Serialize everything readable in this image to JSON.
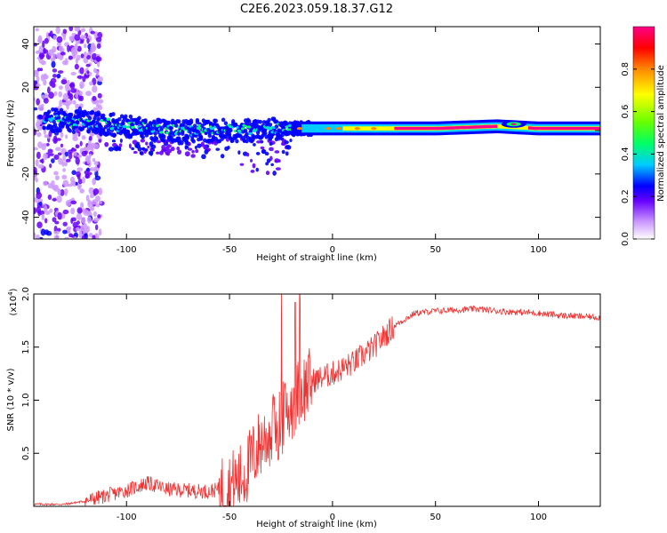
{
  "page": {
    "title": "C2E6.2023.059.18.37.G12"
  },
  "chart_data": [
    {
      "type": "heatmap",
      "title": "C2E6.2023.059.18.37.G12",
      "xlabel": "Height of straight line (km)",
      "ylabel": "Frequency (Hz)",
      "xlim": [
        -145,
        130
      ],
      "ylim": [
        -50,
        48
      ],
      "xticks": [
        -100,
        -50,
        0,
        50,
        100
      ],
      "xtick_labels": [
        "-100",
        "-50",
        "0",
        "50",
        "100"
      ],
      "yticks": [
        -40,
        -20,
        0,
        20,
        40
      ],
      "ytick_labels": [
        "-40",
        "-20",
        "0",
        "20",
        "40"
      ],
      "grid": false,
      "colorbar": {
        "label": "Normalized spectral amplitude",
        "range": [
          0,
          1
        ],
        "ticks": [
          0.0,
          0.2,
          0.4,
          0.6,
          0.8
        ],
        "tick_labels": [
          "0.0",
          "0.2",
          "0.4",
          "0.6",
          "0.8"
        ],
        "colors": [
          "#ffffff",
          "#cc99ff",
          "#6600ff",
          "#0000ff",
          "#00ccff",
          "#00ff66",
          "#66ff00",
          "#ffff00",
          "#ff8800",
          "#ff0000",
          "#ff0088"
        ]
      },
      "ridge": {
        "x": [
          -140,
          -120,
          -100,
          -80,
          -60,
          -40,
          -20,
          0,
          20,
          50,
          80,
          100,
          130
        ],
        "center_frequency_hz": [
          5,
          4,
          2,
          0,
          0,
          0,
          1,
          1,
          1,
          1,
          2,
          1,
          1
        ]
      }
    },
    {
      "type": "line",
      "xlabel": "Height of straight line (km)",
      "ylabel": "SNR (10 * v/v)",
      "y_multiplier": "(x10^4)",
      "y_multiplier_base": "(x10",
      "y_multiplier_exp": "4",
      "y_multiplier_close": ")",
      "xlim": [
        -145,
        130
      ],
      "ylim": [
        0,
        2.0
      ],
      "xticks": [
        -100,
        -50,
        0,
        50,
        100
      ],
      "xtick_labels": [
        "-100",
        "-50",
        "0",
        "50",
        "100"
      ],
      "yticks": [
        0.5,
        1.0,
        1.5,
        2.0
      ],
      "ytick_labels": [
        "0.5",
        "1.0",
        "1.5",
        "2.0"
      ],
      "grid": false,
      "color": "#ee3333",
      "series": [
        {
          "x": [
            -145,
            -130,
            -120,
            -110,
            -100,
            -90,
            -80,
            -70,
            -60,
            -50,
            -45,
            -40,
            -35,
            -30,
            -25,
            -20,
            -15,
            -10,
            0,
            10,
            20,
            30,
            40,
            50,
            60,
            70,
            80,
            90,
            100,
            110,
            120,
            130
          ],
          "values": [
            0.02,
            0.02,
            0.05,
            0.1,
            0.15,
            0.22,
            0.16,
            0.15,
            0.14,
            0.18,
            0.25,
            0.4,
            0.6,
            0.7,
            0.8,
            0.95,
            1.1,
            1.18,
            1.25,
            1.35,
            1.5,
            1.7,
            1.82,
            1.84,
            1.85,
            1.86,
            1.84,
            1.83,
            1.82,
            1.8,
            1.79,
            1.78
          ]
        }
      ]
    }
  ]
}
